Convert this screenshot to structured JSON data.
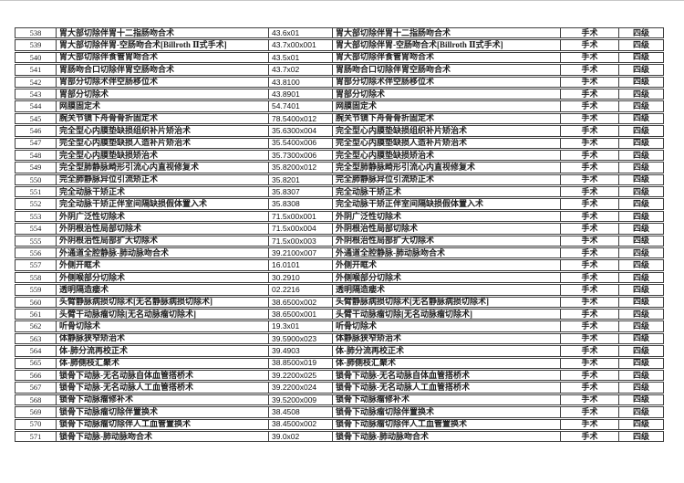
{
  "page": {
    "background_color": "#ffffff",
    "border_color": "#3d3d3d"
  },
  "table": {
    "rows": [
      {
        "no": "538",
        "name": "胃大部切除伴胃十二指肠吻合术",
        "code": "43.6x01",
        "category": "手术",
        "level": "四级"
      },
      {
        "no": "539",
        "name": "胃大部切除伴胃-空肠吻合术[Billroth Ⅱ式手术]",
        "code": "43.7x00x001",
        "category": "手术",
        "level": "四级"
      },
      {
        "no": "540",
        "name": "胃大部切除伴食管胃吻合术",
        "code": "43.5x01",
        "category": "手术",
        "level": "四级"
      },
      {
        "no": "541",
        "name": "胃肠吻合口切除伴胃空肠吻合术",
        "code": "43.7x02",
        "category": "手术",
        "level": "四级"
      },
      {
        "no": "542",
        "name": "胃部分切除术伴空肠移位术",
        "code": "43.8100",
        "category": "手术",
        "level": "四级"
      },
      {
        "no": "543",
        "name": "胃部分切除术",
        "code": "43.8901",
        "category": "手术",
        "level": "四级"
      },
      {
        "no": "544",
        "name": "网膜固定术",
        "code": "54.7401",
        "category": "手术",
        "level": "四级"
      },
      {
        "no": "545",
        "name": "腕关节镜下舟骨骨折固定术",
        "code": "78.5400x012",
        "category": "手术",
        "level": "四级"
      },
      {
        "no": "546",
        "name": "完全型心内膜垫缺损组织补片矫治术",
        "code": "35.6300x004",
        "category": "手术",
        "level": "四级"
      },
      {
        "no": "547",
        "name": "完全型心内膜垫缺损人造补片矫治术",
        "code": "35.5400x006",
        "category": "手术",
        "level": "四级"
      },
      {
        "no": "548",
        "name": "完全型心内膜垫缺损矫治术",
        "code": "35.7300x006",
        "category": "手术",
        "level": "四级"
      },
      {
        "no": "549",
        "name": "完全型肺静脉畸形引流心内直视修复术",
        "code": "35.8200x012",
        "category": "手术",
        "level": "四级"
      },
      {
        "no": "550",
        "name": "完全肺静脉异位引流矫正术",
        "code": "35.8201",
        "category": "手术",
        "level": "四级"
      },
      {
        "no": "551",
        "name": "完全动脉干矫正术",
        "code": "35.8307",
        "category": "手术",
        "level": "四级"
      },
      {
        "no": "552",
        "name": "完全动脉干矫正伴室间隔缺损假体置入术",
        "code": "35.8308",
        "category": "手术",
        "level": "四级"
      },
      {
        "no": "553",
        "name": "外阴广泛性切除术",
        "code": "71.5x00x001",
        "category": "手术",
        "level": "四级"
      },
      {
        "no": "554",
        "name": "外阴根治性局部切除术",
        "code": "71.5x00x004",
        "category": "手术",
        "level": "四级"
      },
      {
        "no": "555",
        "name": "外阴根治性局部扩大切除术",
        "code": "71.5x00x003",
        "category": "手术",
        "level": "四级"
      },
      {
        "no": "556",
        "name": "外通道全腔静脉-肺动脉吻合术",
        "code": "39.2100x007",
        "category": "手术",
        "level": "四级"
      },
      {
        "no": "557",
        "name": "外侧开眶术",
        "code": "16.0101",
        "category": "手术",
        "level": "四级"
      },
      {
        "no": "558",
        "name": "外侧喉部分切除术",
        "code": "30.2910",
        "category": "手术",
        "level": "四级"
      },
      {
        "no": "559",
        "name": "透明隔造瘘术",
        "code": "02.2216",
        "category": "手术",
        "level": "四级"
      },
      {
        "no": "560",
        "name": "头臂静脉病损切除术[无名静脉病损切除术]",
        "code": "38.6500x002",
        "category": "手术",
        "level": "四级"
      },
      {
        "no": "561",
        "name": "头臂干动脉瘤切除[无名动脉瘤切除术]",
        "code": "38.6500x001",
        "category": "手术",
        "level": "四级"
      },
      {
        "no": "562",
        "name": "听骨切除术",
        "code": "19.3x01",
        "category": "手术",
        "level": "四级"
      },
      {
        "no": "563",
        "name": "体静脉狭窄矫治术",
        "code": "39.5900x023",
        "category": "手术",
        "level": "四级"
      },
      {
        "no": "564",
        "name": "体-肺分流再校正术",
        "code": "39.4903",
        "category": "手术",
        "level": "四级"
      },
      {
        "no": "565",
        "name": "体-肺侧枝汇聚术",
        "code": "38.8500x019",
        "category": "手术",
        "level": "四级"
      },
      {
        "no": "566",
        "name": "锁骨下动脉-无名动脉自体血管搭桥术",
        "code": "39.2200x025",
        "category": "手术",
        "level": "四级"
      },
      {
        "no": "567",
        "name": "锁骨下动脉-无名动脉人工血管搭桥术",
        "code": "39.2200x024",
        "category": "手术",
        "level": "四级"
      },
      {
        "no": "568",
        "name": "锁骨下动脉瘤修补术",
        "code": "39.5200x009",
        "category": "手术",
        "level": "四级"
      },
      {
        "no": "569",
        "name": "锁骨下动脉瘤切除伴置换术",
        "code": "38.4508",
        "category": "手术",
        "level": "四级"
      },
      {
        "no": "570",
        "name": "锁骨下动脉瘤切除伴人工血管置换术",
        "code": "38.4500x002",
        "category": "手术",
        "level": "四级"
      },
      {
        "no": "571",
        "name": "锁骨下动脉-肺动脉吻合术",
        "code": "39.0x02",
        "category": "手术",
        "level": "四级"
      }
    ]
  }
}
